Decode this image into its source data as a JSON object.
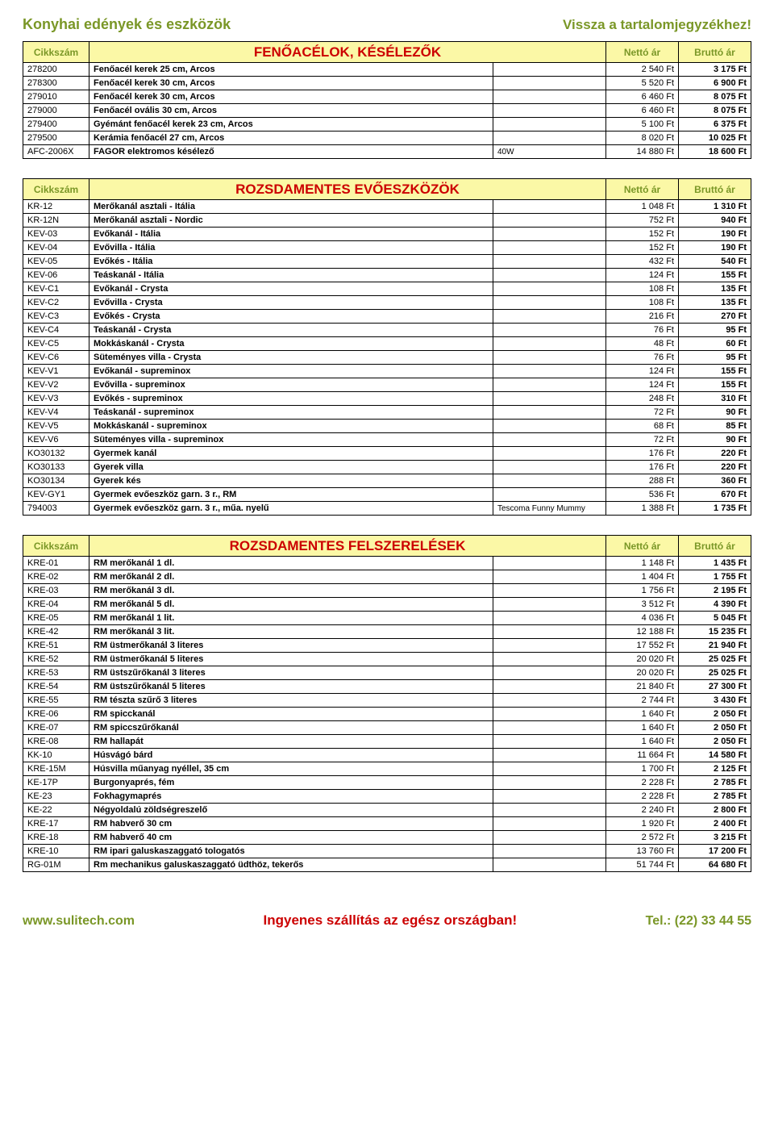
{
  "header": {
    "title": "Konyhai edények és eszközök",
    "back_link": "Vissza a tartalomjegyzékhez!"
  },
  "columns": {
    "code": "Cikkszám",
    "net": "Nettó ár",
    "gross": "Bruttó ár"
  },
  "sections": [
    {
      "title": "FENŐACÉLOK, KÉSÉLEZŐK",
      "rows": [
        {
          "code": "278200",
          "desc": "Fenőacél kerek 25 cm, Arcos",
          "extra": "",
          "net": "2 540 Ft",
          "gross": "3 175 Ft"
        },
        {
          "code": "278300",
          "desc": "Fenőacél kerek 30 cm, Arcos",
          "extra": "",
          "net": "5 520 Ft",
          "gross": "6 900 Ft"
        },
        {
          "code": "279010",
          "desc": "Fenőacél kerek 30 cm, Arcos",
          "extra": "",
          "net": "6 460 Ft",
          "gross": "8 075 Ft"
        },
        {
          "code": "279000",
          "desc": "Fenőacél ovális 30 cm, Arcos",
          "extra": "",
          "net": "6 460 Ft",
          "gross": "8 075 Ft"
        },
        {
          "code": "279400",
          "desc": "Gyémánt fenőacél kerek 23 cm, Arcos",
          "extra": "",
          "net": "5 100 Ft",
          "gross": "6 375 Ft"
        },
        {
          "code": "279500",
          "desc": "Kerámia fenőacél 27 cm, Arcos",
          "extra": "",
          "net": "8 020 Ft",
          "gross": "10 025 Ft"
        },
        {
          "code": "AFC-2006X",
          "desc": "FAGOR elektromos késélező",
          "extra": "40W",
          "net": "14 880 Ft",
          "gross": "18 600 Ft"
        }
      ]
    },
    {
      "title": "ROZSDAMENTES EVŐESZKÖZÖK",
      "rows": [
        {
          "code": "KR-12",
          "desc": "Merőkanál asztali - Itália",
          "extra": "",
          "net": "1 048 Ft",
          "gross": "1 310 Ft"
        },
        {
          "code": "KR-12N",
          "desc": "Merőkanál asztali - Nordic",
          "extra": "",
          "net": "752 Ft",
          "gross": "940 Ft"
        },
        {
          "code": "KEV-03",
          "desc": "Evőkanál - Itália",
          "extra": "",
          "net": "152 Ft",
          "gross": "190 Ft"
        },
        {
          "code": "KEV-04",
          "desc": "Evővilla - Itália",
          "extra": "",
          "net": "152 Ft",
          "gross": "190 Ft"
        },
        {
          "code": "KEV-05",
          "desc": "Evőkés - Itália",
          "extra": "",
          "net": "432 Ft",
          "gross": "540 Ft"
        },
        {
          "code": "KEV-06",
          "desc": "Teáskanál - Itália",
          "extra": "",
          "net": "124 Ft",
          "gross": "155 Ft"
        },
        {
          "code": "KEV-C1",
          "desc": "Evőkanál - Crysta",
          "extra": "",
          "net": "108 Ft",
          "gross": "135 Ft"
        },
        {
          "code": "KEV-C2",
          "desc": "Evővilla - Crysta",
          "extra": "",
          "net": "108 Ft",
          "gross": "135 Ft"
        },
        {
          "code": "KEV-C3",
          "desc": "Evőkés - Crysta",
          "extra": "",
          "net": "216 Ft",
          "gross": "270 Ft"
        },
        {
          "code": "KEV-C4",
          "desc": "Teáskanál - Crysta",
          "extra": "",
          "net": "76 Ft",
          "gross": "95 Ft"
        },
        {
          "code": "KEV-C5",
          "desc": "Mokkáskanál - Crysta",
          "extra": "",
          "net": "48 Ft",
          "gross": "60 Ft"
        },
        {
          "code": "KEV-C6",
          "desc": "Süteményes villa - Crysta",
          "extra": "",
          "net": "76 Ft",
          "gross": "95 Ft"
        },
        {
          "code": "KEV-V1",
          "desc": "Evőkanál - supreminox",
          "extra": "",
          "net": "124 Ft",
          "gross": "155 Ft"
        },
        {
          "code": "KEV-V2",
          "desc": "Evővilla - supreminox",
          "extra": "",
          "net": "124 Ft",
          "gross": "155 Ft"
        },
        {
          "code": "KEV-V3",
          "desc": "Evőkés - supreminox",
          "extra": "",
          "net": "248 Ft",
          "gross": "310 Ft"
        },
        {
          "code": "KEV-V4",
          "desc": "Teáskanál - supreminox",
          "extra": "",
          "net": "72 Ft",
          "gross": "90 Ft"
        },
        {
          "code": "KEV-V5",
          "desc": "Mokkáskanál - supreminox",
          "extra": "",
          "net": "68 Ft",
          "gross": "85 Ft"
        },
        {
          "code": "KEV-V6",
          "desc": "Süteményes villa - supreminox",
          "extra": "",
          "net": "72 Ft",
          "gross": "90 Ft"
        },
        {
          "code": "KO30132",
          "desc": "Gyermek kanál",
          "extra": "",
          "net": "176 Ft",
          "gross": "220 Ft"
        },
        {
          "code": "KO30133",
          "desc": "Gyerek villa",
          "extra": "",
          "net": "176 Ft",
          "gross": "220 Ft"
        },
        {
          "code": "KO30134",
          "desc": "Gyerek kés",
          "extra": "",
          "net": "288 Ft",
          "gross": "360 Ft"
        },
        {
          "code": "KEV-GY1",
          "desc": "Gyermek evőeszköz garn. 3 r., RM",
          "extra": "",
          "net": "536 Ft",
          "gross": "670 Ft"
        },
        {
          "code": "794003",
          "desc": "Gyermek evőeszköz garn. 3 r., műa. nyelű",
          "extra": "Tescoma Funny Mummy",
          "net": "1 388 Ft",
          "gross": "1 735 Ft"
        }
      ]
    },
    {
      "title": "ROZSDAMENTES FELSZERELÉSEK",
      "rows": [
        {
          "code": "KRE-01",
          "desc": "RM merőkanál 1 dl.",
          "extra": "",
          "net": "1 148 Ft",
          "gross": "1 435 Ft"
        },
        {
          "code": "KRE-02",
          "desc": "RM merőkanál 2 dl.",
          "extra": "",
          "net": "1 404 Ft",
          "gross": "1 755 Ft"
        },
        {
          "code": "KRE-03",
          "desc": "RM merőkanál 3 dl.",
          "extra": "",
          "net": "1 756 Ft",
          "gross": "2 195 Ft"
        },
        {
          "code": "KRE-04",
          "desc": "RM merőkanál 5 dl.",
          "extra": "",
          "net": "3 512 Ft",
          "gross": "4 390 Ft"
        },
        {
          "code": "KRE-05",
          "desc": "RM merőkanál 1 lit.",
          "extra": "",
          "net": "4 036 Ft",
          "gross": "5 045 Ft"
        },
        {
          "code": "KRE-42",
          "desc": "RM merőkanál 3 lit.",
          "extra": "",
          "net": "12 188 Ft",
          "gross": "15 235 Ft"
        },
        {
          "code": "KRE-51",
          "desc": "RM üstmerőkanál 3 literes",
          "extra": "",
          "net": "17 552 Ft",
          "gross": "21 940 Ft"
        },
        {
          "code": "KRE-52",
          "desc": "RM üstmerőkanál 5 literes",
          "extra": "",
          "net": "20 020 Ft",
          "gross": "25 025 Ft"
        },
        {
          "code": "KRE-53",
          "desc": "RM üstszűrőkanál 3 literes",
          "extra": "",
          "net": "20 020 Ft",
          "gross": "25 025 Ft"
        },
        {
          "code": "KRE-54",
          "desc": "RM üstszűrőkanál 5 literes",
          "extra": "",
          "net": "21 840 Ft",
          "gross": "27 300 Ft"
        },
        {
          "code": "KRE-55",
          "desc": "RM tészta szűrő 3 literes",
          "extra": "",
          "net": "2 744 Ft",
          "gross": "3 430 Ft"
        },
        {
          "code": "KRE-06",
          "desc": "RM spicckanál",
          "extra": "",
          "net": "1 640 Ft",
          "gross": "2 050 Ft"
        },
        {
          "code": "KRE-07",
          "desc": "RM spiccszűrőkanál",
          "extra": "",
          "net": "1 640 Ft",
          "gross": "2 050 Ft"
        },
        {
          "code": "KRE-08",
          "desc": "RM hallapát",
          "extra": "",
          "net": "1 640 Ft",
          "gross": "2 050 Ft"
        },
        {
          "code": "KK-10",
          "desc": "Húsvágó bárd",
          "extra": "",
          "net": "11 664 Ft",
          "gross": "14 580 Ft"
        },
        {
          "code": "KRE-15M",
          "desc": "Húsvilla műanyag nyéllel, 35 cm",
          "extra": "",
          "net": "1 700 Ft",
          "gross": "2 125 Ft"
        },
        {
          "code": "KE-17P",
          "desc": "Burgonyaprés, fém",
          "extra": "",
          "net": "2 228 Ft",
          "gross": "2 785 Ft"
        },
        {
          "code": "KE-23",
          "desc": "Fokhagymaprés",
          "extra": "",
          "net": "2 228 Ft",
          "gross": "2 785 Ft"
        },
        {
          "code": "KE-22",
          "desc": "Négyoldalú zöldségreszelő",
          "extra": "",
          "net": "2 240 Ft",
          "gross": "2 800 Ft"
        },
        {
          "code": "KRE-17",
          "desc": "RM habverő 30 cm",
          "extra": "",
          "net": "1 920 Ft",
          "gross": "2 400 Ft"
        },
        {
          "code": "KRE-18",
          "desc": "RM habverő 40 cm",
          "extra": "",
          "net": "2 572 Ft",
          "gross": "3 215 Ft"
        },
        {
          "code": "KRE-10",
          "desc": "RM ipari galuskaszaggató tologatós",
          "extra": "",
          "net": "13 760 Ft",
          "gross": "17 200 Ft"
        },
        {
          "code": "RG-01M",
          "desc": "Rm mechanikus galuskaszaggató üdthöz, tekerős",
          "extra": "",
          "net": "51 744 Ft",
          "gross": "64 680 Ft"
        }
      ]
    }
  ],
  "footer": {
    "left": "www.sulitech.com",
    "mid": "Ingyenes szállítás az egész országban!",
    "right": "Tel.: (22) 33 44 55"
  }
}
